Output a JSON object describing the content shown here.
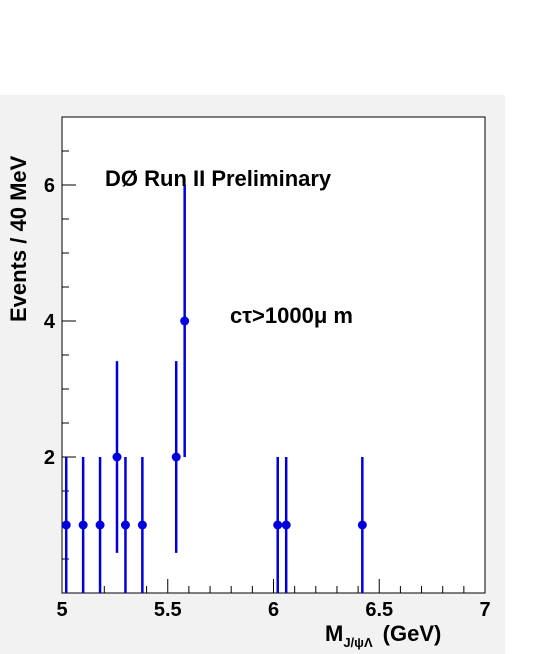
{
  "chart_data": {
    "type": "scatter",
    "title": "",
    "annotations": [
      "DØ Run II Preliminary",
      "cτ>1000μ m"
    ],
    "xlabel_main": "M",
    "xlabel_sub": "J/ψΛ",
    "xlabel_unit": "(GeV)",
    "ylabel": "Events / 40  MeV",
    "xlim": [
      5,
      7
    ],
    "ylim": [
      0,
      7
    ],
    "xticks": [
      "5",
      "5.5",
      "6",
      "6.5",
      "7"
    ],
    "yticks": [
      "2",
      "4",
      "6"
    ],
    "grid": false,
    "series": [
      {
        "color": "#0000dd",
        "points": [
          {
            "x": 5.02,
            "y": 1,
            "yerr": 1
          },
          {
            "x": 5.1,
            "y": 1,
            "yerr": 1
          },
          {
            "x": 5.18,
            "y": 1,
            "yerr": 1
          },
          {
            "x": 5.26,
            "y": 2,
            "yerr": 1.41
          },
          {
            "x": 5.3,
            "y": 1,
            "yerr": 1
          },
          {
            "x": 5.38,
            "y": 1,
            "yerr": 1
          },
          {
            "x": 5.54,
            "y": 2,
            "yerr": 1.41
          },
          {
            "x": 5.58,
            "y": 4,
            "yerr": 2
          },
          {
            "x": 6.02,
            "y": 1,
            "yerr": 1
          },
          {
            "x": 6.06,
            "y": 1,
            "yerr": 1
          },
          {
            "x": 6.42,
            "y": 1,
            "yerr": 1
          }
        ]
      }
    ]
  }
}
